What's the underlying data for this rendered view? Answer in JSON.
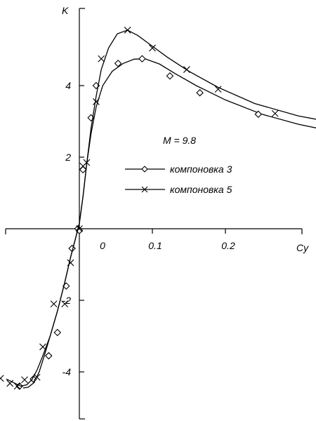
{
  "chart_data": {
    "type": "line",
    "title": "",
    "xlabel": "Cy",
    "ylabel": "K",
    "xlim": [
      -0.12,
      0.35
    ],
    "ylim": [
      -5.3,
      6.0
    ],
    "x_ticks": [
      0,
      0.1,
      0.2
    ],
    "x_tick_labels": [
      "0",
      "0.1",
      "0.2"
    ],
    "y_ticks": [
      -4,
      -2,
      2,
      4
    ],
    "y_tick_labels": [
      "-4",
      "-2",
      "2",
      "4"
    ],
    "grid": false,
    "annotation": "M = 9.8",
    "legend_position": "center-right",
    "series": [
      {
        "name": "компоновка 3",
        "marker": "diamond",
        "curve_x": [
          -0.077,
          -0.07,
          -0.062,
          -0.055,
          -0.048,
          -0.04,
          -0.03,
          -0.02,
          -0.012,
          -0.005,
          0.0,
          0.005,
          0.01,
          0.016,
          0.023,
          0.032,
          0.045,
          0.06,
          0.075,
          0.09,
          0.11,
          0.13,
          0.16,
          0.2,
          0.25,
          0.3,
          0.34
        ],
        "curve_y": [
          -4.45,
          -4.43,
          -4.3,
          -4.0,
          -3.55,
          -3.0,
          -2.3,
          -1.5,
          -0.8,
          -0.25,
          0.15,
          0.9,
          1.8,
          2.65,
          3.4,
          4.0,
          4.4,
          4.62,
          4.74,
          4.75,
          4.6,
          4.35,
          4.0,
          3.6,
          3.2,
          2.92,
          2.75
        ],
        "x": [
          -0.082,
          -0.063,
          -0.042,
          -0.03,
          -0.018,
          -0.01,
          -0.002,
          0.0,
          0.005,
          0.016,
          0.023,
          0.053,
          0.086,
          0.124,
          0.165,
          0.245
        ],
        "y": [
          -4.4,
          -4.2,
          -3.55,
          -2.9,
          -1.6,
          -0.55,
          0.0,
          -0.05,
          1.65,
          3.1,
          4.0,
          4.62,
          4.75,
          4.27,
          3.8,
          3.2
        ]
      },
      {
        "name": "компоновка 5",
        "marker": "x",
        "curve_x": [
          -0.1,
          -0.09,
          -0.08,
          -0.072,
          -0.065,
          -0.058,
          -0.05,
          -0.04,
          -0.03,
          -0.02,
          -0.012,
          -0.005,
          0.0,
          0.005,
          0.01,
          0.016,
          0.023,
          0.03,
          0.04,
          0.052,
          0.066,
          0.08,
          0.1,
          0.12,
          0.15,
          0.19,
          0.24,
          0.3,
          0.34
        ],
        "curve_y": [
          -4.2,
          -4.3,
          -4.4,
          -4.36,
          -4.22,
          -3.95,
          -3.55,
          -3.0,
          -2.3,
          -1.5,
          -0.8,
          -0.25,
          0.15,
          0.9,
          1.8,
          2.8,
          3.7,
          4.45,
          5.05,
          5.45,
          5.55,
          5.4,
          5.1,
          4.8,
          4.4,
          3.95,
          3.5,
          3.15,
          3.0
        ]
      }
    ],
    "series_5_marker_points": {
      "x": [
        -0.108,
        -0.095,
        -0.085,
        -0.075,
        -0.058,
        -0.05,
        -0.035,
        -0.02,
        -0.012,
        0.0,
        0.005,
        0.01,
        0.023,
        0.03,
        0.066,
        0.1,
        0.147,
        0.19,
        0.268
      ],
      "y": [
        -4.18,
        -4.32,
        -4.4,
        -4.22,
        -4.15,
        -3.3,
        -2.1,
        -2.1,
        -0.95,
        0.0,
        1.75,
        1.85,
        3.55,
        4.75,
        5.55,
        5.05,
        4.45,
        3.9,
        3.22
      ]
    }
  },
  "legend": {
    "annotation_text": "M = 9.8",
    "entry_3": "компоновка 3",
    "entry_5": "компоновка 5"
  }
}
